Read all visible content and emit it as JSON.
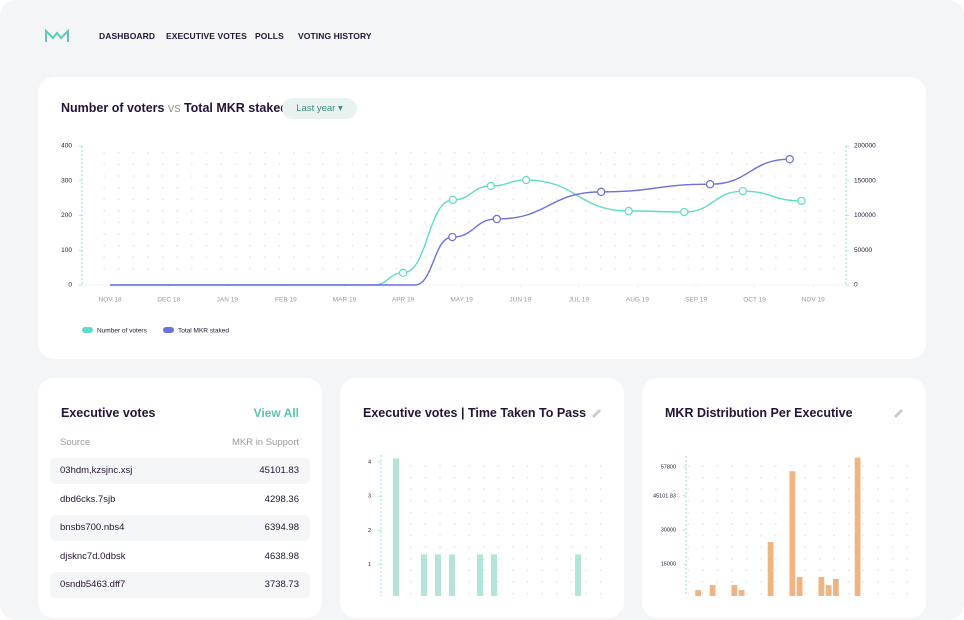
{
  "nav": {
    "items": [
      "DASHBOARD",
      "EXECUTIVE VOTES",
      "POLLS",
      "VOTING HISTORY"
    ]
  },
  "filter": "Last year",
  "table": {
    "title": "Executive votes",
    "link": "View All",
    "columns": [
      "Source",
      "MKR in Support"
    ],
    "rows": [
      [
        "03hdm,kzsjnc.xsj",
        "45101.83"
      ],
      [
        "dbd6cks.7sjb",
        "4298.36"
      ],
      [
        "bnsbs700.nbs4",
        "6394.98"
      ],
      [
        "djsknc7d.0dbsk",
        "4638.98"
      ],
      [
        "0sndb5463.dff7",
        "3738.73"
      ]
    ]
  },
  "chart_data": [
    {
      "type": "line",
      "title_parts": [
        "Number of voters",
        "vs",
        "Total MKR staked"
      ],
      "xlim": [
        -0.48,
        12.56
      ],
      "xticks": [
        {
          "value": 0,
          "label": "NOV 18"
        },
        {
          "value": 1,
          "label": "DEC 18"
        },
        {
          "value": 2,
          "label": "JAN 19"
        },
        {
          "value": 3,
          "label": "FEB 19"
        },
        {
          "value": 4,
          "label": "MAR 19"
        },
        {
          "value": 5,
          "label": "APR 19"
        },
        {
          "value": 6,
          "label": "MAY 19"
        },
        {
          "value": 7,
          "label": "JUN 19"
        },
        {
          "value": 8,
          "label": "JUL 19"
        },
        {
          "value": 9,
          "label": "AUG 19"
        },
        {
          "value": 10,
          "label": "SEP 19"
        },
        {
          "value": 11,
          "label": "OCT 19"
        },
        {
          "value": 12,
          "label": "NOV 19"
        }
      ],
      "ylim": [
        0,
        400
      ],
      "yticks": [
        0,
        100,
        200,
        300,
        400
      ],
      "y2lim": [
        0,
        200000
      ],
      "y2ticks": [
        0,
        50000,
        100000,
        150000,
        200000
      ],
      "series": [
        {
          "name": "Number of voters",
          "color": "#5fdcc4",
          "x": [
            0,
            4.5,
            5,
            5.85,
            6.5,
            7.1,
            8.85,
            9.8,
            10.8,
            11.8
          ],
          "values": [
            0,
            0,
            35,
            245,
            285,
            302,
            213,
            210,
            270,
            242
          ]
        },
        {
          "name": "Total MKR staked",
          "color": "#6a6fe2",
          "axis": "y2",
          "x": [
            0,
            5.2,
            5.84,
            6.6,
            8.38,
            10.24,
            11.6
          ],
          "values": [
            0,
            0,
            69000,
            95000,
            134000,
            145000,
            181000
          ]
        }
      ]
    },
    {
      "type": "bar",
      "title": "Executive votes | Time Taken To Pass",
      "color": "#b3e4da",
      "categories": [
        null,
        null,
        null,
        null,
        null,
        null,
        null,
        null,
        null,
        null,
        null,
        null,
        null,
        null,
        null,
        null
      ],
      "values": [
        0,
        4.1,
        0,
        1.3,
        1.3,
        1.3,
        0,
        1.3,
        1.3,
        0,
        0,
        0,
        0,
        0,
        1.3,
        0
      ],
      "ylim": [
        0,
        4.2
      ],
      "yticks": [
        1,
        2,
        3,
        4
      ]
    },
    {
      "type": "bar",
      "title": "MKR Distribution Per Executive",
      "color": "#f0b482",
      "categories": [
        null,
        null,
        null,
        null,
        null,
        null,
        null,
        null,
        null,
        null,
        null,
        null,
        null,
        null,
        null,
        null,
        null,
        null,
        null,
        null,
        null,
        null,
        null,
        null,
        null,
        null
      ],
      "values": [
        0,
        0,
        3500,
        0,
        5700,
        0,
        0,
        5700,
        3500,
        0,
        0,
        0,
        24700,
        0,
        0,
        56000,
        9300,
        0,
        0,
        9300,
        5700,
        8400,
        0,
        0,
        62000,
        0
      ],
      "ylim": [
        0,
        62700
      ],
      "yticks": [
        15000,
        30000,
        45101.83,
        57800
      ]
    }
  ]
}
